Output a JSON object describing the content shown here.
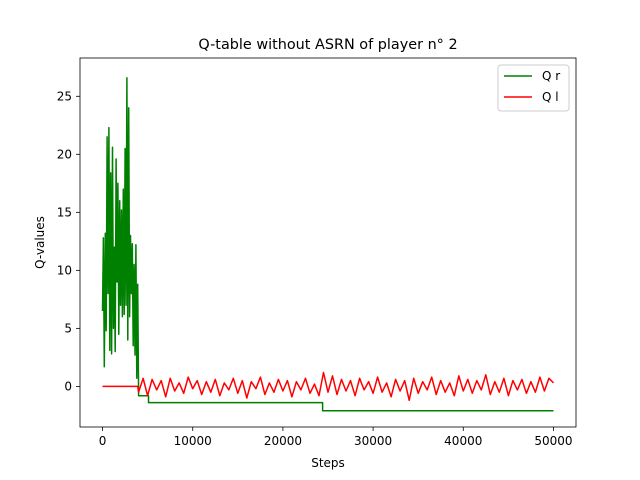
{
  "chart_data": {
    "type": "line",
    "title": "Q-table without ASRN of player n° 2",
    "xlabel": "Steps",
    "ylabel": "Q-values",
    "xlim": [
      -2500,
      52500
    ],
    "ylim": [
      -3.5,
      28.3
    ],
    "xticks": [
      0,
      10000,
      20000,
      30000,
      40000,
      50000
    ],
    "xtick_labels": [
      "0",
      "10000",
      "20000",
      "30000",
      "40000",
      "50000"
    ],
    "yticks": [
      0,
      5,
      10,
      15,
      20,
      25
    ],
    "ytick_labels": [
      "0",
      "5",
      "10",
      "15",
      "20",
      "25"
    ],
    "grid": false,
    "legend_placement": "top-right",
    "series": [
      {
        "name": "Q r",
        "color": "#008000",
        "x": [
          0,
          100,
          200,
          300,
          400,
          500,
          600,
          700,
          800,
          900,
          1000,
          1100,
          1200,
          1300,
          1400,
          1500,
          1600,
          1700,
          1800,
          1900,
          2000,
          2100,
          2200,
          2300,
          2400,
          2500,
          2600,
          2700,
          2800,
          2900,
          3000,
          3100,
          3200,
          3300,
          3400,
          3500,
          3600,
          3700,
          3800,
          3900,
          4000,
          5100,
          5100,
          24400,
          24400,
          50000
        ],
        "y": [
          6.5,
          12.8,
          1.7,
          13.2,
          4.8,
          21.5,
          8.0,
          22.3,
          3.1,
          18.4,
          2.8,
          20.6,
          5.0,
          12.0,
          3.0,
          19.6,
          9.0,
          17.5,
          4.5,
          16.0,
          7.0,
          15.2,
          6.0,
          17.0,
          6.2,
          20.5,
          7.0,
          26.6,
          4.0,
          24.0,
          6.0,
          13.0,
          8.0,
          12.3,
          3.5,
          10.5,
          2.7,
          12.2,
          0.7,
          8.8,
          -0.8,
          -0.8,
          -1.4,
          -1.4,
          -2.1,
          -2.1
        ]
      },
      {
        "name": "Q l",
        "color": "#ff0000",
        "x": [
          0,
          3900,
          4000,
          4500,
          5000,
          5500,
          6000,
          6500,
          7000,
          7500,
          8000,
          8500,
          9000,
          9500,
          10000,
          10500,
          11000,
          11500,
          12000,
          12500,
          13000,
          13500,
          14000,
          14500,
          15000,
          15500,
          16000,
          16500,
          17000,
          17500,
          18000,
          18500,
          19000,
          19500,
          20000,
          20500,
          21000,
          21500,
          22000,
          22500,
          23000,
          23500,
          24000,
          24500,
          25000,
          25500,
          26000,
          26500,
          27000,
          27500,
          28000,
          28500,
          29000,
          29500,
          30000,
          30500,
          31000,
          31500,
          32000,
          32500,
          33000,
          33500,
          34000,
          34500,
          35000,
          35500,
          36000,
          36500,
          37000,
          37500,
          38000,
          38500,
          39000,
          39500,
          40000,
          40500,
          41000,
          41500,
          42000,
          42500,
          43000,
          43500,
          44000,
          44500,
          45000,
          45500,
          46000,
          46500,
          47000,
          47500,
          48000,
          48500,
          49000,
          49500,
          50000
        ],
        "y": [
          0.0,
          0.0,
          -0.5,
          0.7,
          -0.8,
          0.6,
          -0.3,
          0.5,
          -0.9,
          0.7,
          -0.4,
          0.3,
          -0.6,
          0.8,
          -0.2,
          0.5,
          -0.7,
          0.4,
          -0.5,
          0.6,
          -0.8,
          0.3,
          -0.3,
          0.7,
          -0.6,
          0.5,
          -1.0,
          0.4,
          -0.2,
          0.8,
          -0.7,
          0.3,
          -0.5,
          0.6,
          -0.4,
          0.5,
          -0.9,
          0.4,
          -0.3,
          0.7,
          -0.6,
          0.2,
          -0.8,
          1.2,
          -0.5,
          0.9,
          -0.7,
          0.6,
          -0.4,
          0.5,
          -0.8,
          0.7,
          -0.3,
          0.4,
          -0.6,
          0.8,
          -0.5,
          0.3,
          -0.9,
          0.6,
          -0.4,
          0.5,
          -1.2,
          0.7,
          -0.6,
          0.4,
          -0.3,
          0.8,
          -0.7,
          0.5,
          -0.5,
          0.3,
          -0.8,
          0.9,
          -0.4,
          0.6,
          -0.6,
          0.5,
          -0.3,
          1.0,
          -0.7,
          0.4,
          -0.5,
          0.7,
          -0.8,
          0.5,
          -0.3,
          0.6,
          -0.6,
          0.4,
          -0.5,
          0.8,
          -0.4,
          0.7,
          0.3
        ]
      }
    ]
  }
}
